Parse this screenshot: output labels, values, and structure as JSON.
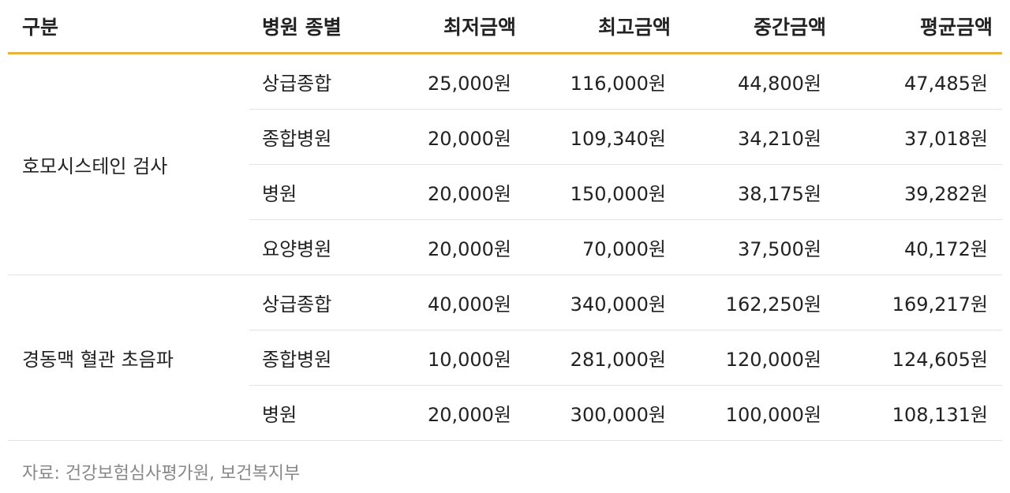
{
  "table": {
    "headers": {
      "category": "구분",
      "hospital_type": "병원 종별",
      "min": "최저금액",
      "max": "최고금액",
      "median": "중간금액",
      "avg": "평균금액"
    },
    "groups": [
      {
        "name": "호모시스테인 검사",
        "rows": [
          {
            "type": "상급종합",
            "min": "25,000원",
            "max": "116,000원",
            "median": "44,800원",
            "avg": "47,485원"
          },
          {
            "type": "종합병원",
            "min": "20,000원",
            "max": "109,340원",
            "median": "34,210원",
            "avg": "37,018원"
          },
          {
            "type": "병원",
            "min": "20,000원",
            "max": "150,000원",
            "median": "38,175원",
            "avg": "39,282원"
          },
          {
            "type": "요양병원",
            "min": "20,000원",
            "max": "70,000원",
            "median": "37,500원",
            "avg": "40,172원"
          }
        ]
      },
      {
        "name": "경동맥 혈관 초음파",
        "rows": [
          {
            "type": "상급종합",
            "min": "40,000원",
            "max": "340,000원",
            "median": "162,250원",
            "avg": "169,217원"
          },
          {
            "type": "종합병원",
            "min": "10,000원",
            "max": "281,000원",
            "median": "120,000원",
            "avg": "124,605원"
          },
          {
            "type": "병원",
            "min": "20,000원",
            "max": "300,000원",
            "median": "100,000원",
            "avg": "108,131원"
          }
        ]
      }
    ]
  },
  "source": "자료: 건강보험심사평가원, 보건복지부",
  "colors": {
    "header_rule": "#e8b23c",
    "row_rule": "#e3e3e3",
    "text": "#222222",
    "source_text": "#888888"
  }
}
